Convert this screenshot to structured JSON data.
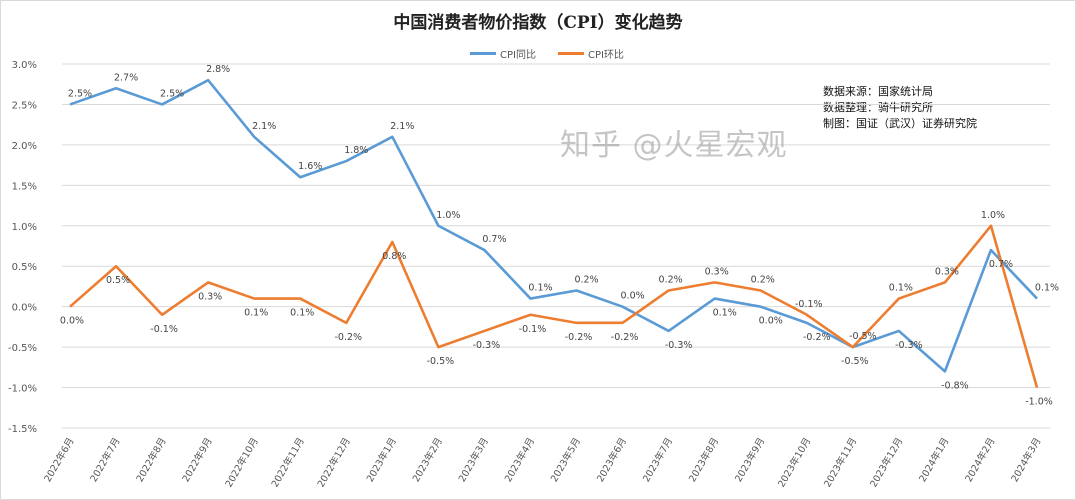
{
  "chart_data": {
    "type": "line",
    "title": "中国消费者物价指数（CPI）变化趋势",
    "categories": [
      "2022年6月",
      "2022年7月",
      "2022年8月",
      "2022年9月",
      "2022年10月",
      "2022年11月",
      "2022年12月",
      "2023年1月",
      "2023年2月",
      "2023年3月",
      "2023年4月",
      "2023年5月",
      "2023年6月",
      "2023年7月",
      "2023年8月",
      "2023年9月",
      "2023年10月",
      "2023年11月",
      "2023年12月",
      "2024年1月",
      "2024年2月",
      "2024年3月"
    ],
    "series": [
      {
        "name": "CPI同比",
        "color": "#5b9bd5",
        "values": [
          2.5,
          2.7,
          2.5,
          2.8,
          2.1,
          1.6,
          1.8,
          2.1,
          1.0,
          0.7,
          0.1,
          0.2,
          0.0,
          -0.3,
          0.1,
          0.0,
          -0.2,
          -0.5,
          -0.3,
          -0.8,
          0.7,
          0.1
        ]
      },
      {
        "name": "CPI环比",
        "color": "#ed7d31",
        "values": [
          0.0,
          0.5,
          -0.1,
          0.3,
          0.1,
          0.1,
          -0.2,
          0.8,
          -0.5,
          -0.3,
          -0.1,
          -0.2,
          -0.2,
          0.2,
          0.3,
          0.2,
          -0.1,
          -0.5,
          0.1,
          0.3,
          1.0,
          -1.0
        ]
      }
    ],
    "ylim": [
      -1.5,
      3.0
    ],
    "yticks": [
      3.0,
      2.5,
      2.0,
      1.5,
      1.0,
      0.5,
      0.0,
      -0.5,
      -1.0,
      -1.5
    ],
    "ytick_format": "percent-1dp",
    "grid": true,
    "legend_placement": "top-center",
    "data_labels": true
  },
  "notes": [
    "数据来源：国家统计局",
    "数据整理：骑牛研究所",
    "制图：国证（武汉）证券研究院"
  ],
  "watermark": "知乎 @火星宏观"
}
